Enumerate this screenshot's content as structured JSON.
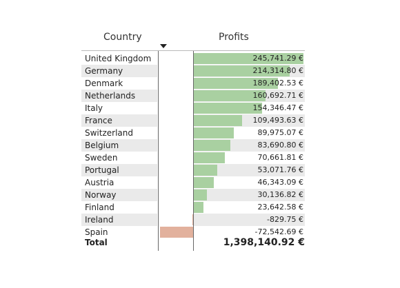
{
  "table": {
    "headers": {
      "country": "Country",
      "profits": "Profits"
    },
    "colors": {
      "positive": "#a9d0a1",
      "negative": "#e2b19d"
    },
    "max_abs_value": 245741.29,
    "rows": [
      {
        "country": "United Kingdom",
        "profit": 245741.29,
        "profit_label": "245,741.29 €"
      },
      {
        "country": "Germany",
        "profit": 214314.8,
        "profit_label": "214,314.80 €"
      },
      {
        "country": "Denmark",
        "profit": 189402.53,
        "profit_label": "189,402.53 €"
      },
      {
        "country": "Netherlands",
        "profit": 160692.71,
        "profit_label": "160,692.71 €"
      },
      {
        "country": "Italy",
        "profit": 154346.47,
        "profit_label": "154,346.47 €"
      },
      {
        "country": "France",
        "profit": 109493.63,
        "profit_label": "109,493.63 €"
      },
      {
        "country": "Switzerland",
        "profit": 89975.07,
        "profit_label": "89,975.07 €"
      },
      {
        "country": "Belgium",
        "profit": 83690.8,
        "profit_label": "83,690.80 €"
      },
      {
        "country": "Sweden",
        "profit": 70661.81,
        "profit_label": "70,661.81 €"
      },
      {
        "country": "Portugal",
        "profit": 53071.76,
        "profit_label": "53,071.76 €"
      },
      {
        "country": "Austria",
        "profit": 46343.09,
        "profit_label": "46,343.09 €"
      },
      {
        "country": "Norway",
        "profit": 30136.82,
        "profit_label": "30,136.82 €"
      },
      {
        "country": "Finland",
        "profit": 23642.58,
        "profit_label": "23,642.58 €"
      },
      {
        "country": "Ireland",
        "profit": -829.75,
        "profit_label": "-829.75 €"
      },
      {
        "country": "Spain",
        "profit": -72542.69,
        "profit_label": "-72,542.69 €"
      }
    ],
    "total": {
      "label": "Total",
      "value": "1,398,140.92 €"
    }
  }
}
